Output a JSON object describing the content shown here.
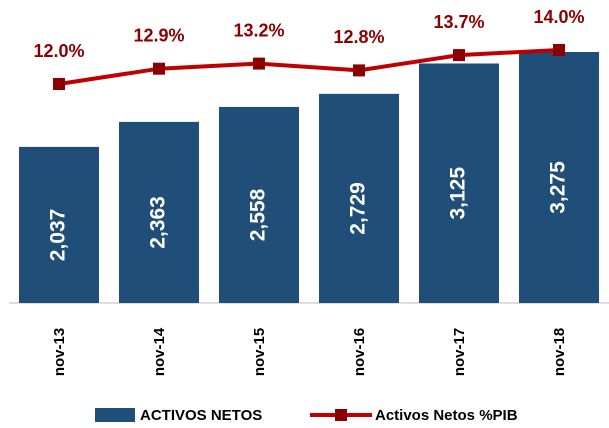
{
  "chart_data": {
    "type": "bar",
    "categories": [
      "nov-13",
      "nov-14",
      "nov-15",
      "nov-16",
      "nov-17",
      "nov-18"
    ],
    "series": [
      {
        "name": "ACTIVOS NETOS",
        "type": "bar",
        "color": "#1f4e79",
        "values": [
          2037,
          2363,
          2558,
          2729,
          3125,
          3275
        ],
        "value_labels": [
          "2,037",
          "2,363",
          "2,558",
          "2,729",
          "3,125",
          "3,275"
        ]
      },
      {
        "name": "Activos Netos %PIB",
        "type": "line",
        "color": "#c00000",
        "values": [
          12.0,
          12.9,
          13.2,
          12.8,
          13.7,
          14.0
        ],
        "value_labels": [
          "12.0%",
          "12.9%",
          "13.2%",
          "12.8%",
          "13.7%",
          "14.0%"
        ]
      }
    ],
    "legend": "bottom"
  }
}
